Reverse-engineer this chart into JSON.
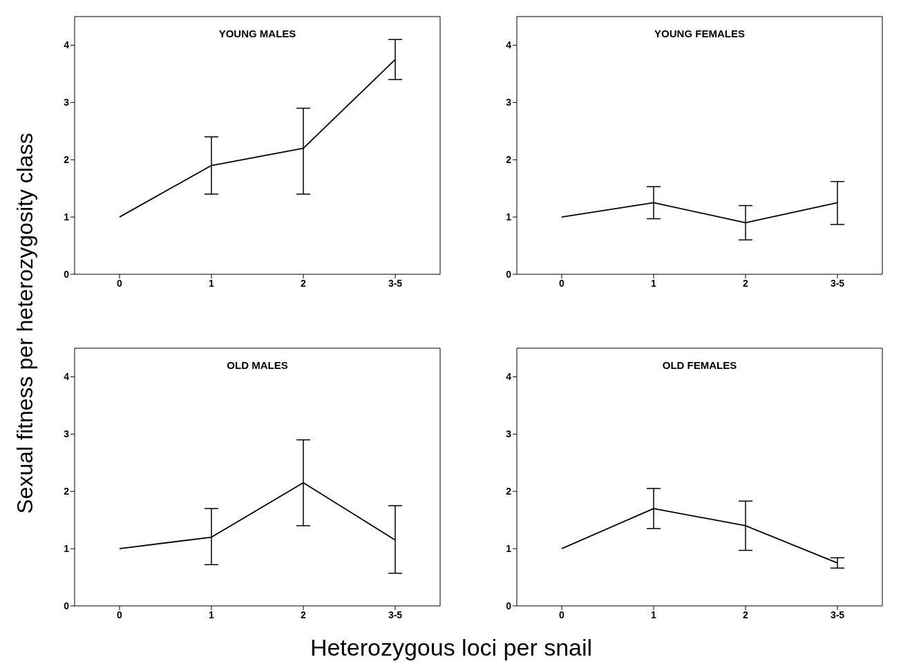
{
  "chart_data": [
    {
      "type": "line",
      "title": "YOUNG MALES",
      "ylabel": "Sexual fitness per heterozygosity class",
      "categories": [
        "0",
        "1",
        "2",
        "3-5"
      ],
      "series": [
        {
          "color": "#000000",
          "values": [
            1,
            1.9,
            2.2,
            3.75
          ],
          "errors": [
            null,
            [
              1.4,
              2.4
            ],
            [
              1.4,
              2.9
            ],
            [
              3.4,
              4.1
            ]
          ]
        }
      ],
      "ylim": [
        0,
        4.5
      ],
      "yticks": [
        0,
        1,
        2,
        3,
        4
      ],
      "marker": "none",
      "line_style": "solid",
      "grid": false,
      "legend": false
    },
    {
      "type": "line",
      "title": "YOUNG FEMALES",
      "categories": [
        "0",
        "1",
        "2",
        "3-5"
      ],
      "series": [
        {
          "color": "#000000",
          "values": [
            1,
            1.25,
            0.9,
            1.25
          ],
          "errors": [
            null,
            [
              0.97,
              1.53
            ],
            [
              0.6,
              1.2
            ],
            [
              0.87,
              1.62
            ]
          ]
        }
      ],
      "ylim": [
        0,
        4.5
      ],
      "yticks": [
        0,
        1,
        2,
        3,
        4
      ],
      "marker": "none",
      "line_style": "solid",
      "grid": false,
      "legend": false
    },
    {
      "type": "line",
      "title": "OLD MALES",
      "xlabel": "Heterozygous loci per snail",
      "categories": [
        "0",
        "1",
        "2",
        "3-5"
      ],
      "series": [
        {
          "color": "#000000",
          "values": [
            1,
            1.2,
            2.15,
            1.15
          ],
          "errors": [
            null,
            [
              0.72,
              1.7
            ],
            [
              1.4,
              2.9
            ],
            [
              0.57,
              1.75
            ]
          ]
        }
      ],
      "ylim": [
        0,
        4.5
      ],
      "yticks": [
        0,
        1,
        2,
        3,
        4
      ],
      "marker": "none",
      "line_style": "solid",
      "grid": false,
      "legend": false
    },
    {
      "type": "line",
      "title": "OLD FEMALES",
      "categories": [
        "0",
        "1",
        "2",
        "3-5"
      ],
      "series": [
        {
          "color": "#000000",
          "values": [
            1,
            1.7,
            1.4,
            0.75
          ],
          "errors": [
            null,
            [
              1.35,
              2.05
            ],
            [
              0.97,
              1.83
            ],
            [
              0.66,
              0.84
            ]
          ]
        }
      ],
      "ylim": [
        0,
        4.5
      ],
      "yticks": [
        0,
        1,
        2,
        3,
        4
      ],
      "marker": "none",
      "line_style": "solid",
      "grid": false,
      "legend": false
    }
  ]
}
